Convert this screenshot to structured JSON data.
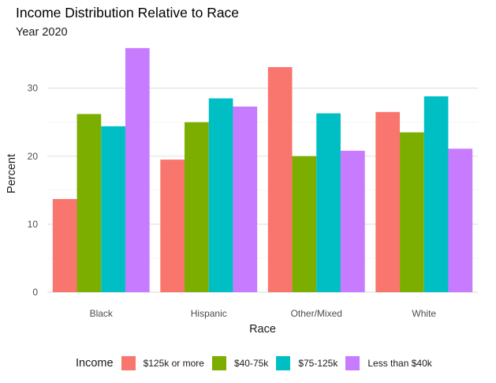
{
  "chart_data": {
    "type": "bar",
    "title": "Income Distribution Relative to Race",
    "subtitle": "Year 2020",
    "xlabel": "Race",
    "ylabel": "Percent",
    "categories": [
      "Black",
      "Hispanic",
      "Other/Mixed",
      "White"
    ],
    "ylim": [
      0,
      36
    ],
    "yticks": [
      0,
      10,
      20,
      30
    ],
    "grid": true,
    "legend": {
      "title": "Income",
      "position": "bottom"
    },
    "series": [
      {
        "name": "$125k or more",
        "color": "#F8766D",
        "values": [
          13.7,
          19.5,
          33.1,
          26.5
        ]
      },
      {
        "name": "$40-75k",
        "color": "#7CAE00",
        "values": [
          26.2,
          25.0,
          20.0,
          23.5
        ]
      },
      {
        "name": "$75-125k",
        "color": "#00BFC4",
        "values": [
          24.4,
          28.5,
          26.3,
          28.8
        ]
      },
      {
        "name": "Less than $40k",
        "color": "#C77CFF",
        "values": [
          35.9,
          27.3,
          20.8,
          21.1
        ]
      }
    ]
  }
}
